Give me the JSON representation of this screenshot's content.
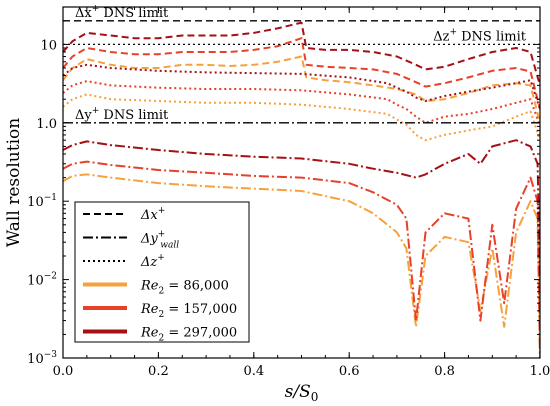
{
  "chart_data": {
    "type": "line",
    "title": "",
    "xlabel": "s/S0",
    "xlabel_parts": {
      "base": "s/S",
      "sub": "0"
    },
    "ylabel": "Wall resolution",
    "xlim": [
      0.0,
      1.0
    ],
    "ylim": [
      0.001,
      30
    ],
    "yscale": "log",
    "grid": false,
    "legend_position": "lower-left",
    "x_ticks": [
      "0.0",
      "0.2",
      "0.4",
      "0.6",
      "0.8",
      "1.0"
    ],
    "y_ticks": [
      {
        "value": 0.001,
        "label": "10",
        "exp": "−3"
      },
      {
        "value": 0.01,
        "label": "10",
        "exp": "−2"
      },
      {
        "value": 0.1,
        "label": "10",
        "exp": "−1"
      },
      {
        "value": 1,
        "label": "1.0",
        "exp": ""
      },
      {
        "value": 10,
        "label": "10",
        "exp": ""
      }
    ],
    "reference_lines": [
      {
        "name": "Δx⁺ DNS limit",
        "base": "Δx",
        "sup": "+",
        "rest": " DNS limit",
        "y": 20,
        "style": "dashed",
        "label_anchor": "left"
      },
      {
        "name": "Δz⁺ DNS limit",
        "base": "Δz",
        "sup": "+",
        "rest": " DNS limit",
        "y": 10,
        "style": "dotted",
        "label_anchor": "right"
      },
      {
        "name": "Δy⁺ DNS limit",
        "base": "Δy",
        "sup": "+",
        "rest": " DNS limit",
        "y": 1,
        "style": "dashdot",
        "label_anchor": "left"
      }
    ],
    "colors": {
      "Re2_86000": "#f5a13c",
      "Re2_157000": "#e8402a",
      "Re2_297000": "#a50f15",
      "reference": "#000000"
    },
    "legend": [
      {
        "label_base": "Δx",
        "label_sup": "+",
        "label_sub": "",
        "style": "dashed",
        "color": "#000000"
      },
      {
        "label_base": "Δy",
        "label_sup": "+",
        "label_sub": "wall",
        "style": "dashdot",
        "color": "#000000"
      },
      {
        "label_base": "Δz",
        "label_sup": "+",
        "label_sub": "",
        "style": "dotted",
        "color": "#000000"
      },
      {
        "label_base": "Re",
        "label_sub": "2",
        "value": " = 86,000",
        "style": "solid",
        "color": "#f5a13c"
      },
      {
        "label_base": "Re",
        "label_sub": "2",
        "value": " = 157,000",
        "style": "solid",
        "color": "#e8402a"
      },
      {
        "label_base": "Re",
        "label_sub": "2",
        "value": " = 297,000",
        "style": "solid",
        "color": "#a50f15"
      }
    ],
    "series": [
      {
        "quantity": "dx",
        "reynolds": "86,000",
        "style": "dashed",
        "color": "#f5a13c",
        "points": [
          [
            0,
            3.5
          ],
          [
            0.02,
            5
          ],
          [
            0.05,
            6.5
          ],
          [
            0.1,
            5.5
          ],
          [
            0.15,
            5
          ],
          [
            0.2,
            5
          ],
          [
            0.25,
            5.5
          ],
          [
            0.3,
            5.5
          ],
          [
            0.35,
            5.3
          ],
          [
            0.4,
            5.5
          ],
          [
            0.45,
            6
          ],
          [
            0.5,
            7
          ],
          [
            0.51,
            3.8
          ],
          [
            0.55,
            3.5
          ],
          [
            0.6,
            3.3
          ],
          [
            0.65,
            3
          ],
          [
            0.7,
            2.7
          ],
          [
            0.74,
            2.3
          ],
          [
            0.76,
            1.9
          ],
          [
            0.8,
            2
          ],
          [
            0.85,
            2.4
          ],
          [
            0.9,
            3
          ],
          [
            0.95,
            3.2
          ],
          [
            0.98,
            3
          ],
          [
            1.0,
            1
          ]
        ]
      },
      {
        "quantity": "dx",
        "reynolds": "157,000",
        "style": "dashed",
        "color": "#e8402a",
        "points": [
          [
            0,
            5
          ],
          [
            0.02,
            7
          ],
          [
            0.05,
            9
          ],
          [
            0.1,
            8
          ],
          [
            0.15,
            7.5
          ],
          [
            0.2,
            7.5
          ],
          [
            0.25,
            8
          ],
          [
            0.3,
            8
          ],
          [
            0.35,
            8
          ],
          [
            0.4,
            8.5
          ],
          [
            0.45,
            9.5
          ],
          [
            0.5,
            12
          ],
          [
            0.51,
            5.5
          ],
          [
            0.55,
            5.2
          ],
          [
            0.6,
            5
          ],
          [
            0.65,
            4.8
          ],
          [
            0.7,
            4.2
          ],
          [
            0.74,
            3.3
          ],
          [
            0.76,
            2.9
          ],
          [
            0.8,
            3.2
          ],
          [
            0.85,
            3.8
          ],
          [
            0.9,
            4.6
          ],
          [
            0.95,
            5
          ],
          [
            0.98,
            4.5
          ],
          [
            1.0,
            1.5
          ]
        ]
      },
      {
        "quantity": "dx",
        "reynolds": "297,000",
        "style": "dashed",
        "color": "#a50f15",
        "points": [
          [
            0,
            8
          ],
          [
            0.02,
            11
          ],
          [
            0.05,
            14
          ],
          [
            0.1,
            13
          ],
          [
            0.15,
            12
          ],
          [
            0.2,
            12
          ],
          [
            0.25,
            13
          ],
          [
            0.3,
            13
          ],
          [
            0.35,
            13
          ],
          [
            0.4,
            14
          ],
          [
            0.45,
            16
          ],
          [
            0.5,
            19
          ],
          [
            0.51,
            9
          ],
          [
            0.55,
            8.5
          ],
          [
            0.6,
            8.5
          ],
          [
            0.65,
            8
          ],
          [
            0.7,
            7
          ],
          [
            0.74,
            5.5
          ],
          [
            0.76,
            4.8
          ],
          [
            0.8,
            5.2
          ],
          [
            0.85,
            6.5
          ],
          [
            0.9,
            8
          ],
          [
            0.95,
            9
          ],
          [
            0.98,
            8
          ],
          [
            1.0,
            3
          ]
        ]
      },
      {
        "quantity": "dz",
        "reynolds": "86,000",
        "style": "dotted",
        "color": "#f5a13c",
        "points": [
          [
            0,
            1.6
          ],
          [
            0.02,
            2
          ],
          [
            0.05,
            2.3
          ],
          [
            0.1,
            2
          ],
          [
            0.2,
            1.9
          ],
          [
            0.3,
            1.8
          ],
          [
            0.4,
            1.8
          ],
          [
            0.5,
            1.7
          ],
          [
            0.6,
            1.5
          ],
          [
            0.68,
            1.3
          ],
          [
            0.7,
            1.1
          ],
          [
            0.72,
            0.95
          ],
          [
            0.74,
            0.7
          ],
          [
            0.76,
            0.6
          ],
          [
            0.8,
            0.7
          ],
          [
            0.85,
            0.8
          ],
          [
            0.9,
            0.9
          ],
          [
            0.95,
            1.2
          ],
          [
            0.98,
            1.4
          ],
          [
            1.0,
            0.6
          ]
        ]
      },
      {
        "quantity": "dz",
        "reynolds": "157,000",
        "style": "dotted",
        "color": "#e8402a",
        "points": [
          [
            0,
            2.4
          ],
          [
            0.02,
            3
          ],
          [
            0.05,
            3.4
          ],
          [
            0.1,
            3
          ],
          [
            0.2,
            2.8
          ],
          [
            0.3,
            2.7
          ],
          [
            0.4,
            2.7
          ],
          [
            0.5,
            2.6
          ],
          [
            0.6,
            2.3
          ],
          [
            0.68,
            2
          ],
          [
            0.7,
            1.7
          ],
          [
            0.72,
            1.5
          ],
          [
            0.74,
            1.2
          ],
          [
            0.76,
            1
          ],
          [
            0.8,
            1.2
          ],
          [
            0.85,
            1.3
          ],
          [
            0.9,
            1.5
          ],
          [
            0.95,
            1.8
          ],
          [
            0.98,
            2
          ],
          [
            1.0,
            0.9
          ]
        ]
      },
      {
        "quantity": "dz",
        "reynolds": "297,000",
        "style": "dotted",
        "color": "#a50f15",
        "points": [
          [
            0,
            4
          ],
          [
            0.02,
            5
          ],
          [
            0.05,
            5.5
          ],
          [
            0.1,
            5
          ],
          [
            0.2,
            4.6
          ],
          [
            0.3,
            4.4
          ],
          [
            0.4,
            4.3
          ],
          [
            0.5,
            4.2
          ],
          [
            0.6,
            3.8
          ],
          [
            0.68,
            3.2
          ],
          [
            0.7,
            2.8
          ],
          [
            0.72,
            2.5
          ],
          [
            0.74,
            2.1
          ],
          [
            0.76,
            1.9
          ],
          [
            0.8,
            2.2
          ],
          [
            0.85,
            2.5
          ],
          [
            0.9,
            2.8
          ],
          [
            0.95,
            3.2
          ],
          [
            0.98,
            3.5
          ],
          [
            1.0,
            1.5
          ]
        ]
      },
      {
        "quantity": "dy_wall",
        "reynolds": "86,000",
        "style": "dashdot",
        "color": "#f5a13c",
        "points": [
          [
            0,
            0.18
          ],
          [
            0.02,
            0.21
          ],
          [
            0.05,
            0.22
          ],
          [
            0.1,
            0.2
          ],
          [
            0.2,
            0.17
          ],
          [
            0.3,
            0.155
          ],
          [
            0.4,
            0.145
          ],
          [
            0.5,
            0.135
          ],
          [
            0.6,
            0.1
          ],
          [
            0.65,
            0.07
          ],
          [
            0.7,
            0.04
          ],
          [
            0.72,
            0.025
          ],
          [
            0.74,
            0.0025
          ],
          [
            0.76,
            0.02
          ],
          [
            0.8,
            0.035
          ],
          [
            0.85,
            0.03
          ],
          [
            0.875,
            0.004
          ],
          [
            0.9,
            0.025
          ],
          [
            0.925,
            0.0025
          ],
          [
            0.95,
            0.04
          ],
          [
            0.98,
            0.1
          ],
          [
            0.995,
            0.06
          ],
          [
            1.0,
            0.001
          ]
        ]
      },
      {
        "quantity": "dy_wall",
        "reynolds": "157,000",
        "style": "dashdot",
        "color": "#e8402a",
        "points": [
          [
            0,
            0.26
          ],
          [
            0.02,
            0.3
          ],
          [
            0.05,
            0.32
          ],
          [
            0.1,
            0.29
          ],
          [
            0.2,
            0.25
          ],
          [
            0.3,
            0.23
          ],
          [
            0.4,
            0.21
          ],
          [
            0.5,
            0.2
          ],
          [
            0.6,
            0.17
          ],
          [
            0.65,
            0.13
          ],
          [
            0.7,
            0.09
          ],
          [
            0.72,
            0.06
          ],
          [
            0.74,
            0.003
          ],
          [
            0.76,
            0.04
          ],
          [
            0.8,
            0.07
          ],
          [
            0.85,
            0.06
          ],
          [
            0.875,
            0.003
          ],
          [
            0.9,
            0.05
          ],
          [
            0.925,
            0.005
          ],
          [
            0.95,
            0.08
          ],
          [
            0.98,
            0.2
          ],
          [
            0.995,
            0.1
          ],
          [
            1.0,
            0.001
          ]
        ]
      },
      {
        "quantity": "dy_wall",
        "reynolds": "297,000",
        "style": "dashdot",
        "color": "#a50f15",
        "points": [
          [
            0,
            0.45
          ],
          [
            0.02,
            0.52
          ],
          [
            0.05,
            0.58
          ],
          [
            0.1,
            0.52
          ],
          [
            0.2,
            0.45
          ],
          [
            0.3,
            0.4
          ],
          [
            0.4,
            0.37
          ],
          [
            0.5,
            0.35
          ],
          [
            0.6,
            0.3
          ],
          [
            0.65,
            0.26
          ],
          [
            0.7,
            0.23
          ],
          [
            0.74,
            0.2
          ],
          [
            0.76,
            0.22
          ],
          [
            0.8,
            0.3
          ],
          [
            0.85,
            0.4
          ],
          [
            0.875,
            0.3
          ],
          [
            0.9,
            0.5
          ],
          [
            0.95,
            0.6
          ],
          [
            0.98,
            0.5
          ],
          [
            0.995,
            0.3
          ],
          [
            1.0,
            0.01
          ]
        ]
      }
    ]
  }
}
